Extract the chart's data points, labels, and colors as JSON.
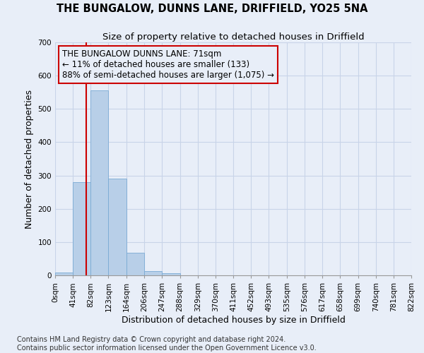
{
  "title": "THE BUNGALOW, DUNNS LANE, DRIFFIELD, YO25 5NA",
  "subtitle": "Size of property relative to detached houses in Driffield",
  "xlabel": "Distribution of detached houses by size in Driffield",
  "ylabel": "Number of detached properties",
  "bar_values": [
    8,
    280,
    555,
    290,
    67,
    12,
    6,
    0,
    0,
    0,
    0,
    0,
    0,
    0,
    0,
    0,
    0,
    0,
    0,
    0
  ],
  "bin_edges": [
    0,
    41,
    82,
    123,
    164,
    206,
    247,
    288,
    329,
    370,
    411,
    452,
    493,
    535,
    576,
    617,
    658,
    699,
    740,
    781,
    822
  ],
  "tick_labels": [
    "0sqm",
    "41sqm",
    "82sqm",
    "123sqm",
    "164sqm",
    "206sqm",
    "247sqm",
    "288sqm",
    "329sqm",
    "370sqm",
    "411sqm",
    "452sqm",
    "493sqm",
    "535sqm",
    "576sqm",
    "617sqm",
    "658sqm",
    "699sqm",
    "740sqm",
    "781sqm",
    "822sqm"
  ],
  "bar_color": "#b8cfe8",
  "bar_edge_color": "#7aaad4",
  "grid_color": "#c8d4e8",
  "background_color": "#e8eef8",
  "property_size": 71,
  "red_line_color": "#cc0000",
  "annotation_line1": "THE BUNGALOW DUNNS LANE: 71sqm",
  "annotation_line2": "← 11% of detached houses are smaller (133)",
  "annotation_line3": "88% of semi-detached houses are larger (1,075) →",
  "annotation_box_color": "#cc0000",
  "ylim": [
    0,
    700
  ],
  "yticks": [
    0,
    100,
    200,
    300,
    400,
    500,
    600,
    700
  ],
  "footer_line1": "Contains HM Land Registry data © Crown copyright and database right 2024.",
  "footer_line2": "Contains public sector information licensed under the Open Government Licence v3.0.",
  "title_fontsize": 10.5,
  "subtitle_fontsize": 9.5,
  "axis_label_fontsize": 9,
  "tick_fontsize": 7.5,
  "annotation_fontsize": 8.5,
  "footer_fontsize": 7
}
